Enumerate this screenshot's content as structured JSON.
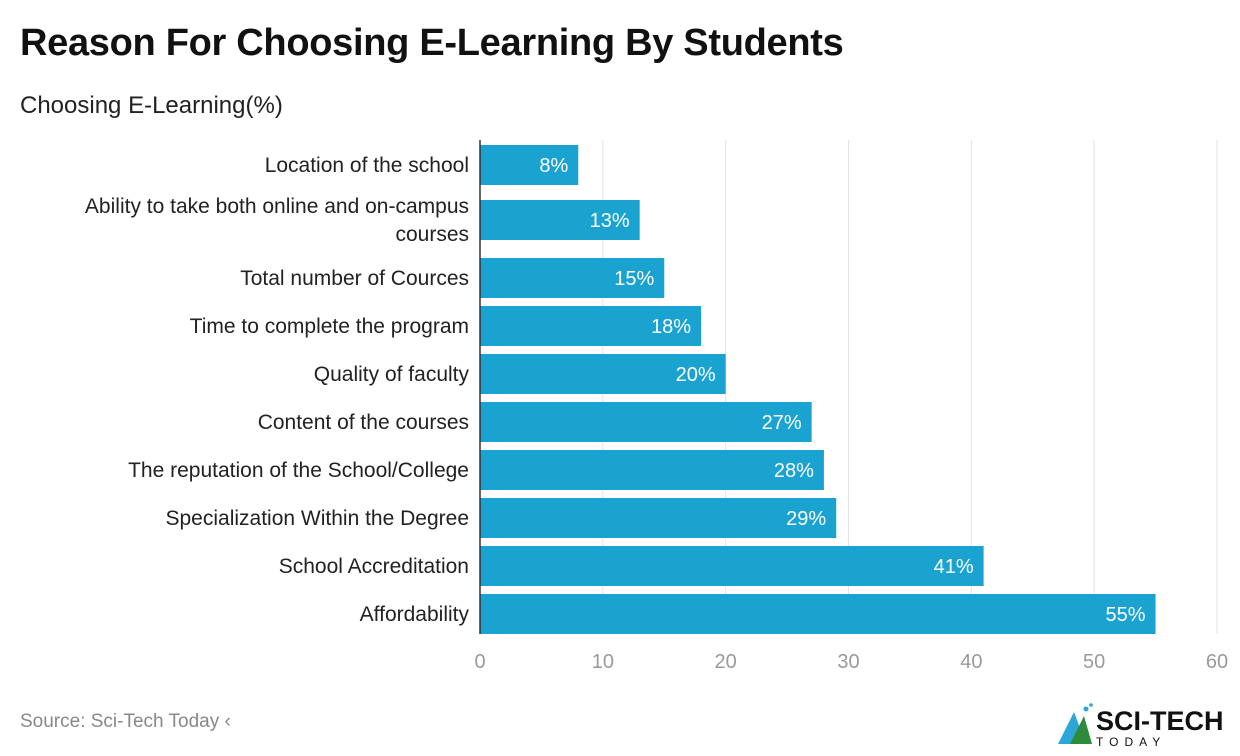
{
  "title": "Reason For Choosing E-Learning By Students",
  "subtitle": "Choosing E-Learning(%)",
  "source": "Source: Sci-Tech Today ‹",
  "logo": {
    "text": "SCI-TECH",
    "subtext": "TODAY"
  },
  "colors": {
    "bar": "#1aa3d1",
    "grid": "#e3e3e3",
    "axis_text": "#9a9a9a"
  },
  "chart_data": {
    "type": "bar",
    "orientation": "horizontal",
    "categories": [
      [
        "Location of the school"
      ],
      [
        "Ability to take both online and on-campus",
        "courses"
      ],
      [
        "Total number of Cources"
      ],
      [
        "Time to complete the program"
      ],
      [
        "Quality of faculty"
      ],
      [
        "Content of the courses"
      ],
      [
        "The reputation of the School/College"
      ],
      [
        "Specialization Within the Degree"
      ],
      [
        "School Accreditation"
      ],
      [
        "Affordability"
      ]
    ],
    "values": [
      8,
      13,
      15,
      18,
      20,
      27,
      28,
      29,
      41,
      55
    ],
    "data_labels": [
      "8%",
      "13%",
      "15%",
      "18%",
      "20%",
      "27%",
      "28%",
      "29%",
      "41%",
      "55%"
    ],
    "xlim": [
      0,
      60
    ],
    "xticks": [
      "0",
      "10",
      "20",
      "30",
      "40",
      "50",
      "60"
    ],
    "grid": true
  }
}
